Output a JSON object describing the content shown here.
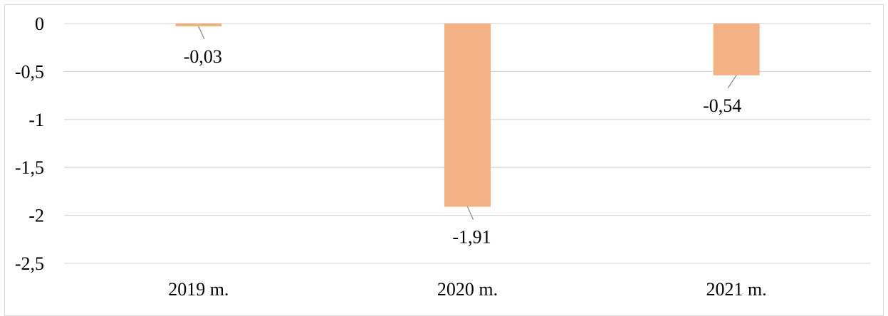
{
  "chart_data": {
    "type": "bar",
    "categories": [
      "2019 m.",
      "2020 m.",
      "2021 m."
    ],
    "values": [
      -0.03,
      -1.91,
      -0.54
    ],
    "data_labels": [
      "-0,03",
      "-1,91",
      "-0,54"
    ],
    "title": "",
    "xlabel": "",
    "ylabel": "",
    "ylim": [
      -2.5,
      0
    ],
    "yticks": [
      0,
      -0.5,
      -1,
      -1.5,
      -2,
      -2.5
    ],
    "ytick_labels": [
      "0",
      "-0,5",
      "-1",
      "-1,5",
      "-2",
      "-2,5"
    ],
    "grid": true,
    "legend": "none",
    "colors": {
      "bar": "#f4b183",
      "grid": "#d9d9d9",
      "leader": "#8c8c8c"
    }
  }
}
